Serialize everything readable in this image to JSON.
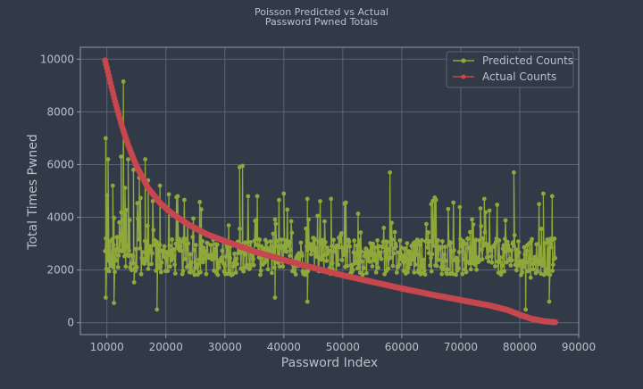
{
  "colors": {
    "background": "#323a48",
    "plot_background": "#323a48",
    "grid": "#5b6478",
    "axes_edge": "#8f99ad",
    "text": "#b8c0cc",
    "predicted": "#8fa83b",
    "actual": "#c7474f"
  },
  "chart_data": {
    "type": "line",
    "title": "Poisson Predicted vs Actual",
    "subtitle": "Password Pwned Totals",
    "xlabel": "Password Index",
    "ylabel": "Total Times Pwned",
    "xlim": [
      5500,
      90000
    ],
    "ylim": [
      -450,
      10450
    ],
    "xticks": [
      10000,
      20000,
      30000,
      40000,
      50000,
      60000,
      70000,
      80000,
      90000
    ],
    "yticks": [
      0,
      2000,
      4000,
      6000,
      8000,
      10000
    ],
    "xtick_labels": [
      "10000",
      "20000",
      "30000",
      "40000",
      "50000",
      "60000",
      "70000",
      "80000",
      "90000"
    ],
    "ytick_labels": [
      "0",
      "2000",
      "4000",
      "6000",
      "8000",
      "10000"
    ],
    "grid": true,
    "legend_position": "top-right",
    "series": [
      {
        "name": "Predicted Counts",
        "color": "#8fa83b",
        "marker": "circle",
        "note_points": "dense noisy series fluctuating roughly between 1500 and 3500 across the full index range, with occasional spikes",
        "x_range": [
          9700,
          86000
        ],
        "typical_range": [
          1500,
          3500
        ],
        "spikes": [
          {
            "x": 9800,
            "y": 7000
          },
          {
            "x": 10200,
            "y": 6200
          },
          {
            "x": 11000,
            "y": 5200
          },
          {
            "x": 12400,
            "y": 6300
          },
          {
            "x": 12800,
            "y": 9150
          },
          {
            "x": 13600,
            "y": 6200
          },
          {
            "x": 14500,
            "y": 5800
          },
          {
            "x": 15500,
            "y": 5500
          },
          {
            "x": 16500,
            "y": 6200
          },
          {
            "x": 17000,
            "y": 5400
          },
          {
            "x": 19000,
            "y": 5200
          },
          {
            "x": 22000,
            "y": 4800
          },
          {
            "x": 26000,
            "y": 4300
          },
          {
            "x": 32500,
            "y": 5900
          },
          {
            "x": 33000,
            "y": 5950
          },
          {
            "x": 35500,
            "y": 4800
          },
          {
            "x": 40000,
            "y": 4900
          },
          {
            "x": 44000,
            "y": 4700
          },
          {
            "x": 48000,
            "y": 4700
          },
          {
            "x": 58000,
            "y": 5700
          },
          {
            "x": 65000,
            "y": 4500
          },
          {
            "x": 74000,
            "y": 4700
          },
          {
            "x": 79000,
            "y": 5700
          },
          {
            "x": 84000,
            "y": 4900
          },
          {
            "x": 85500,
            "y": 4800
          }
        ],
        "dips": [
          {
            "x": 9800,
            "y": 950
          },
          {
            "x": 11200,
            "y": 750
          },
          {
            "x": 18500,
            "y": 500
          },
          {
            "x": 38500,
            "y": 950
          },
          {
            "x": 44000,
            "y": 800
          },
          {
            "x": 81000,
            "y": 500
          },
          {
            "x": 85000,
            "y": 800
          }
        ]
      },
      {
        "name": "Actual Counts",
        "color": "#c7474f",
        "marker": "circle",
        "x": [
          9700,
          10500,
          11500,
          12500,
          13500,
          15000,
          17000,
          19000,
          21000,
          24000,
          27000,
          30000,
          35000,
          40000,
          45000,
          50000,
          55000,
          60000,
          65000,
          70000,
          75000,
          78000,
          80000,
          82000,
          84000,
          86000
        ],
        "y": [
          9950,
          9200,
          8300,
          7500,
          6800,
          5950,
          5100,
          4550,
          4150,
          3700,
          3350,
          3100,
          2700,
          2380,
          2080,
          1800,
          1550,
          1300,
          1070,
          860,
          650,
          480,
          300,
          150,
          60,
          20
        ]
      }
    ]
  }
}
